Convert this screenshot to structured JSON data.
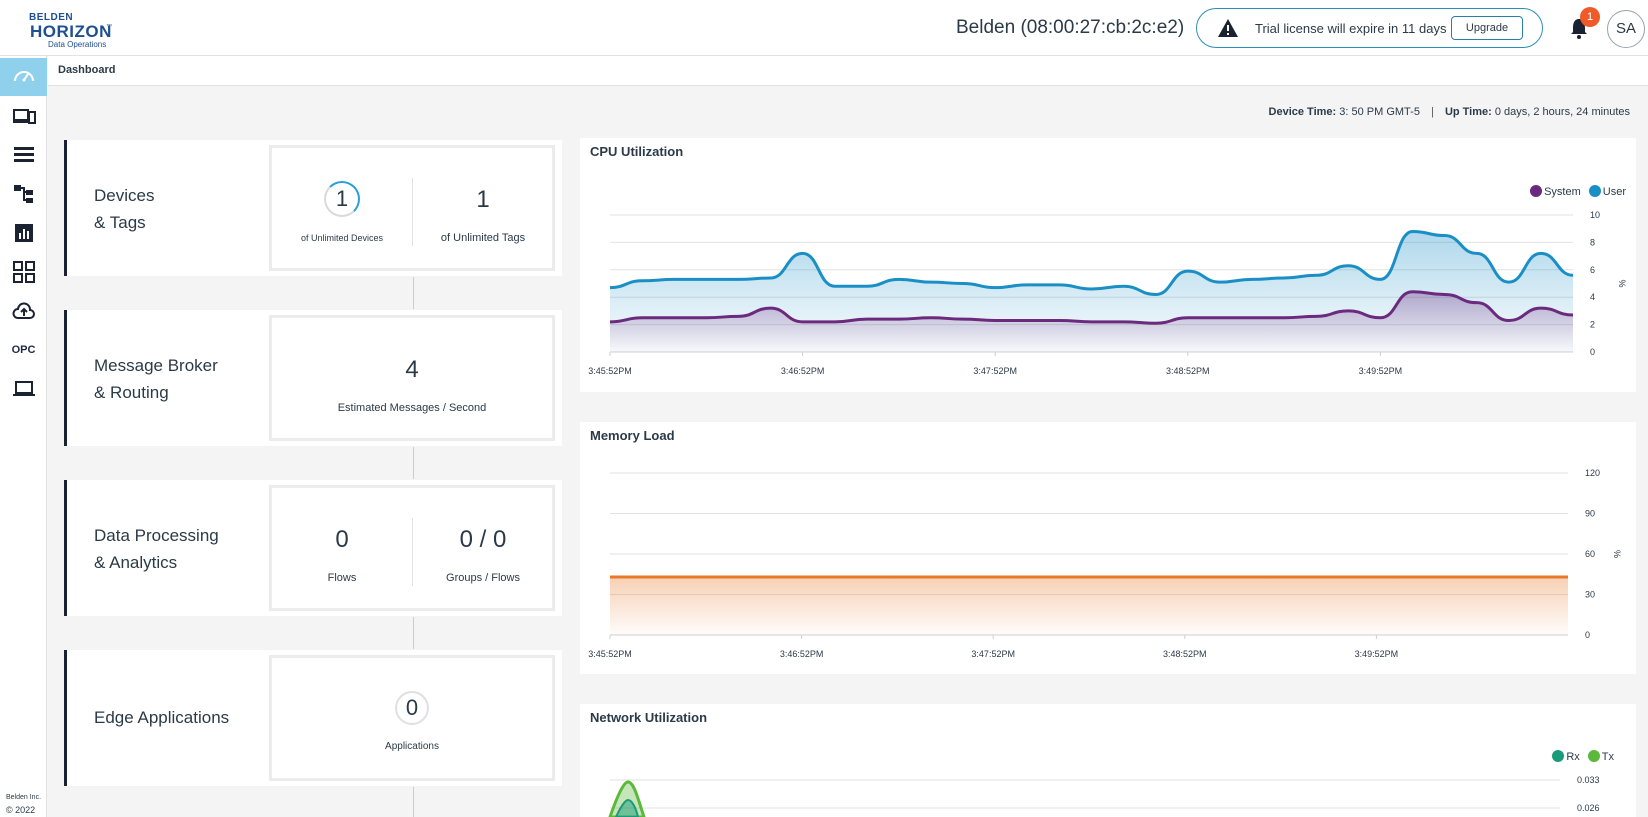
{
  "header": {
    "logo": {
      "brand": "BELDEN",
      "product": "HORIZON",
      "tm": "™",
      "sub": "Data Operations"
    },
    "device_title": "Belden (08:00:27:cb:2c:e2)",
    "license_message": "Trial license will expire in 11 days",
    "upgrade_label": "Upgrade",
    "notification_count": "1",
    "avatar_initials": "SA"
  },
  "sidebar": {
    "items": [
      {
        "name": "dashboard",
        "icon": "speedometer-icon",
        "active": true
      },
      {
        "name": "devices",
        "icon": "devices-icon"
      },
      {
        "name": "data-list",
        "icon": "list-icon"
      },
      {
        "name": "flows",
        "icon": "hierarchy-icon"
      },
      {
        "name": "reports",
        "icon": "bar-chart-icon"
      },
      {
        "name": "applications",
        "icon": "grid-icon"
      },
      {
        "name": "cloud",
        "icon": "cloud-upload-icon"
      },
      {
        "name": "opc",
        "label": "OPC"
      },
      {
        "name": "system",
        "icon": "laptop-icon"
      }
    ],
    "copyright_company": "Belden Inc.",
    "copyright_year": "© 2022"
  },
  "breadcrumb": "Dashboard",
  "device_info": {
    "device_time_label": "Device Time:",
    "device_time_value": "3: 50 PM GMT-5",
    "separator": "|",
    "uptime_label": "Up Time:",
    "uptime_value": "0 days, 2 hours, 24 minutes"
  },
  "summary": {
    "devices_tags": {
      "title_line1": "Devices",
      "title_line2": "& Tags",
      "devices_count": "1",
      "devices_label": "of Unlimited Devices",
      "tags_count": "1",
      "tags_label": "of Unlimited Tags"
    },
    "message_broker": {
      "title_line1": "Message Broker",
      "title_line2": "& Routing",
      "count": "4",
      "label": "Estimated Messages / Second"
    },
    "data_processing": {
      "title_line1": "Data Processing",
      "title_line2": "& Analytics",
      "flows_count": "0",
      "flows_label": "Flows",
      "groups_count": "0 / 0",
      "groups_label": "Groups / Flows"
    },
    "edge_apps": {
      "title": "Edge Applications",
      "count": "0",
      "label": "Applications"
    }
  },
  "colors": {
    "system": "#6b2a7e",
    "user": "#1a8fc6",
    "memory": "#e8782a",
    "rx": "#1a9c7a",
    "tx": "#5cb83a",
    "accent": "#8fd0ec"
  },
  "chart_data": [
    {
      "type": "area",
      "title": "CPU Utilization",
      "ylabel": "%",
      "ylim": [
        0,
        10
      ],
      "yticks": [
        0,
        2,
        4,
        6,
        8,
        10
      ],
      "x_ticks": [
        "3:45:52PM",
        "3:46:52PM",
        "3:47:52PM",
        "3:48:52PM",
        "3:49:52PM"
      ],
      "legend": [
        "System",
        "User"
      ],
      "series": [
        {
          "name": "User",
          "values": [
            4.7,
            5.2,
            5.3,
            5.3,
            5.3,
            5.4,
            7.2,
            4.8,
            4.8,
            5.3,
            5.1,
            5.0,
            4.7,
            4.9,
            4.9,
            4.6,
            4.8,
            4.2,
            5.9,
            5.1,
            5.3,
            5.4,
            5.6,
            6.3,
            5.3,
            8.8,
            8.5,
            7.2,
            5.1,
            7.2,
            5.6
          ]
        },
        {
          "name": "System",
          "values": [
            2.2,
            2.5,
            2.5,
            2.5,
            2.6,
            3.2,
            2.2,
            2.2,
            2.4,
            2.4,
            2.5,
            2.4,
            2.3,
            2.3,
            2.3,
            2.2,
            2.2,
            2.1,
            2.5,
            2.5,
            2.5,
            2.5,
            2.6,
            3.0,
            2.5,
            4.4,
            4.2,
            3.6,
            2.3,
            3.2,
            2.7
          ]
        }
      ]
    },
    {
      "type": "area",
      "title": "Memory Load",
      "ylabel": "%",
      "ylim": [
        0,
        120
      ],
      "yticks": [
        0,
        30,
        60,
        90,
        120
      ],
      "x_ticks": [
        "3:45:52PM",
        "3:46:52PM",
        "3:47:52PM",
        "3:48:52PM",
        "3:49:52PM"
      ],
      "series": [
        {
          "name": "Memory",
          "values": [
            43,
            43,
            43,
            43,
            43,
            43,
            43,
            43,
            43,
            43,
            43,
            43
          ]
        }
      ]
    },
    {
      "type": "area",
      "title": "Network Utilization",
      "ylim_visible": [
        0.026,
        0.033
      ],
      "yticks": [
        0.026,
        0.033
      ],
      "legend": [
        "Rx",
        "Tx"
      ]
    }
  ]
}
